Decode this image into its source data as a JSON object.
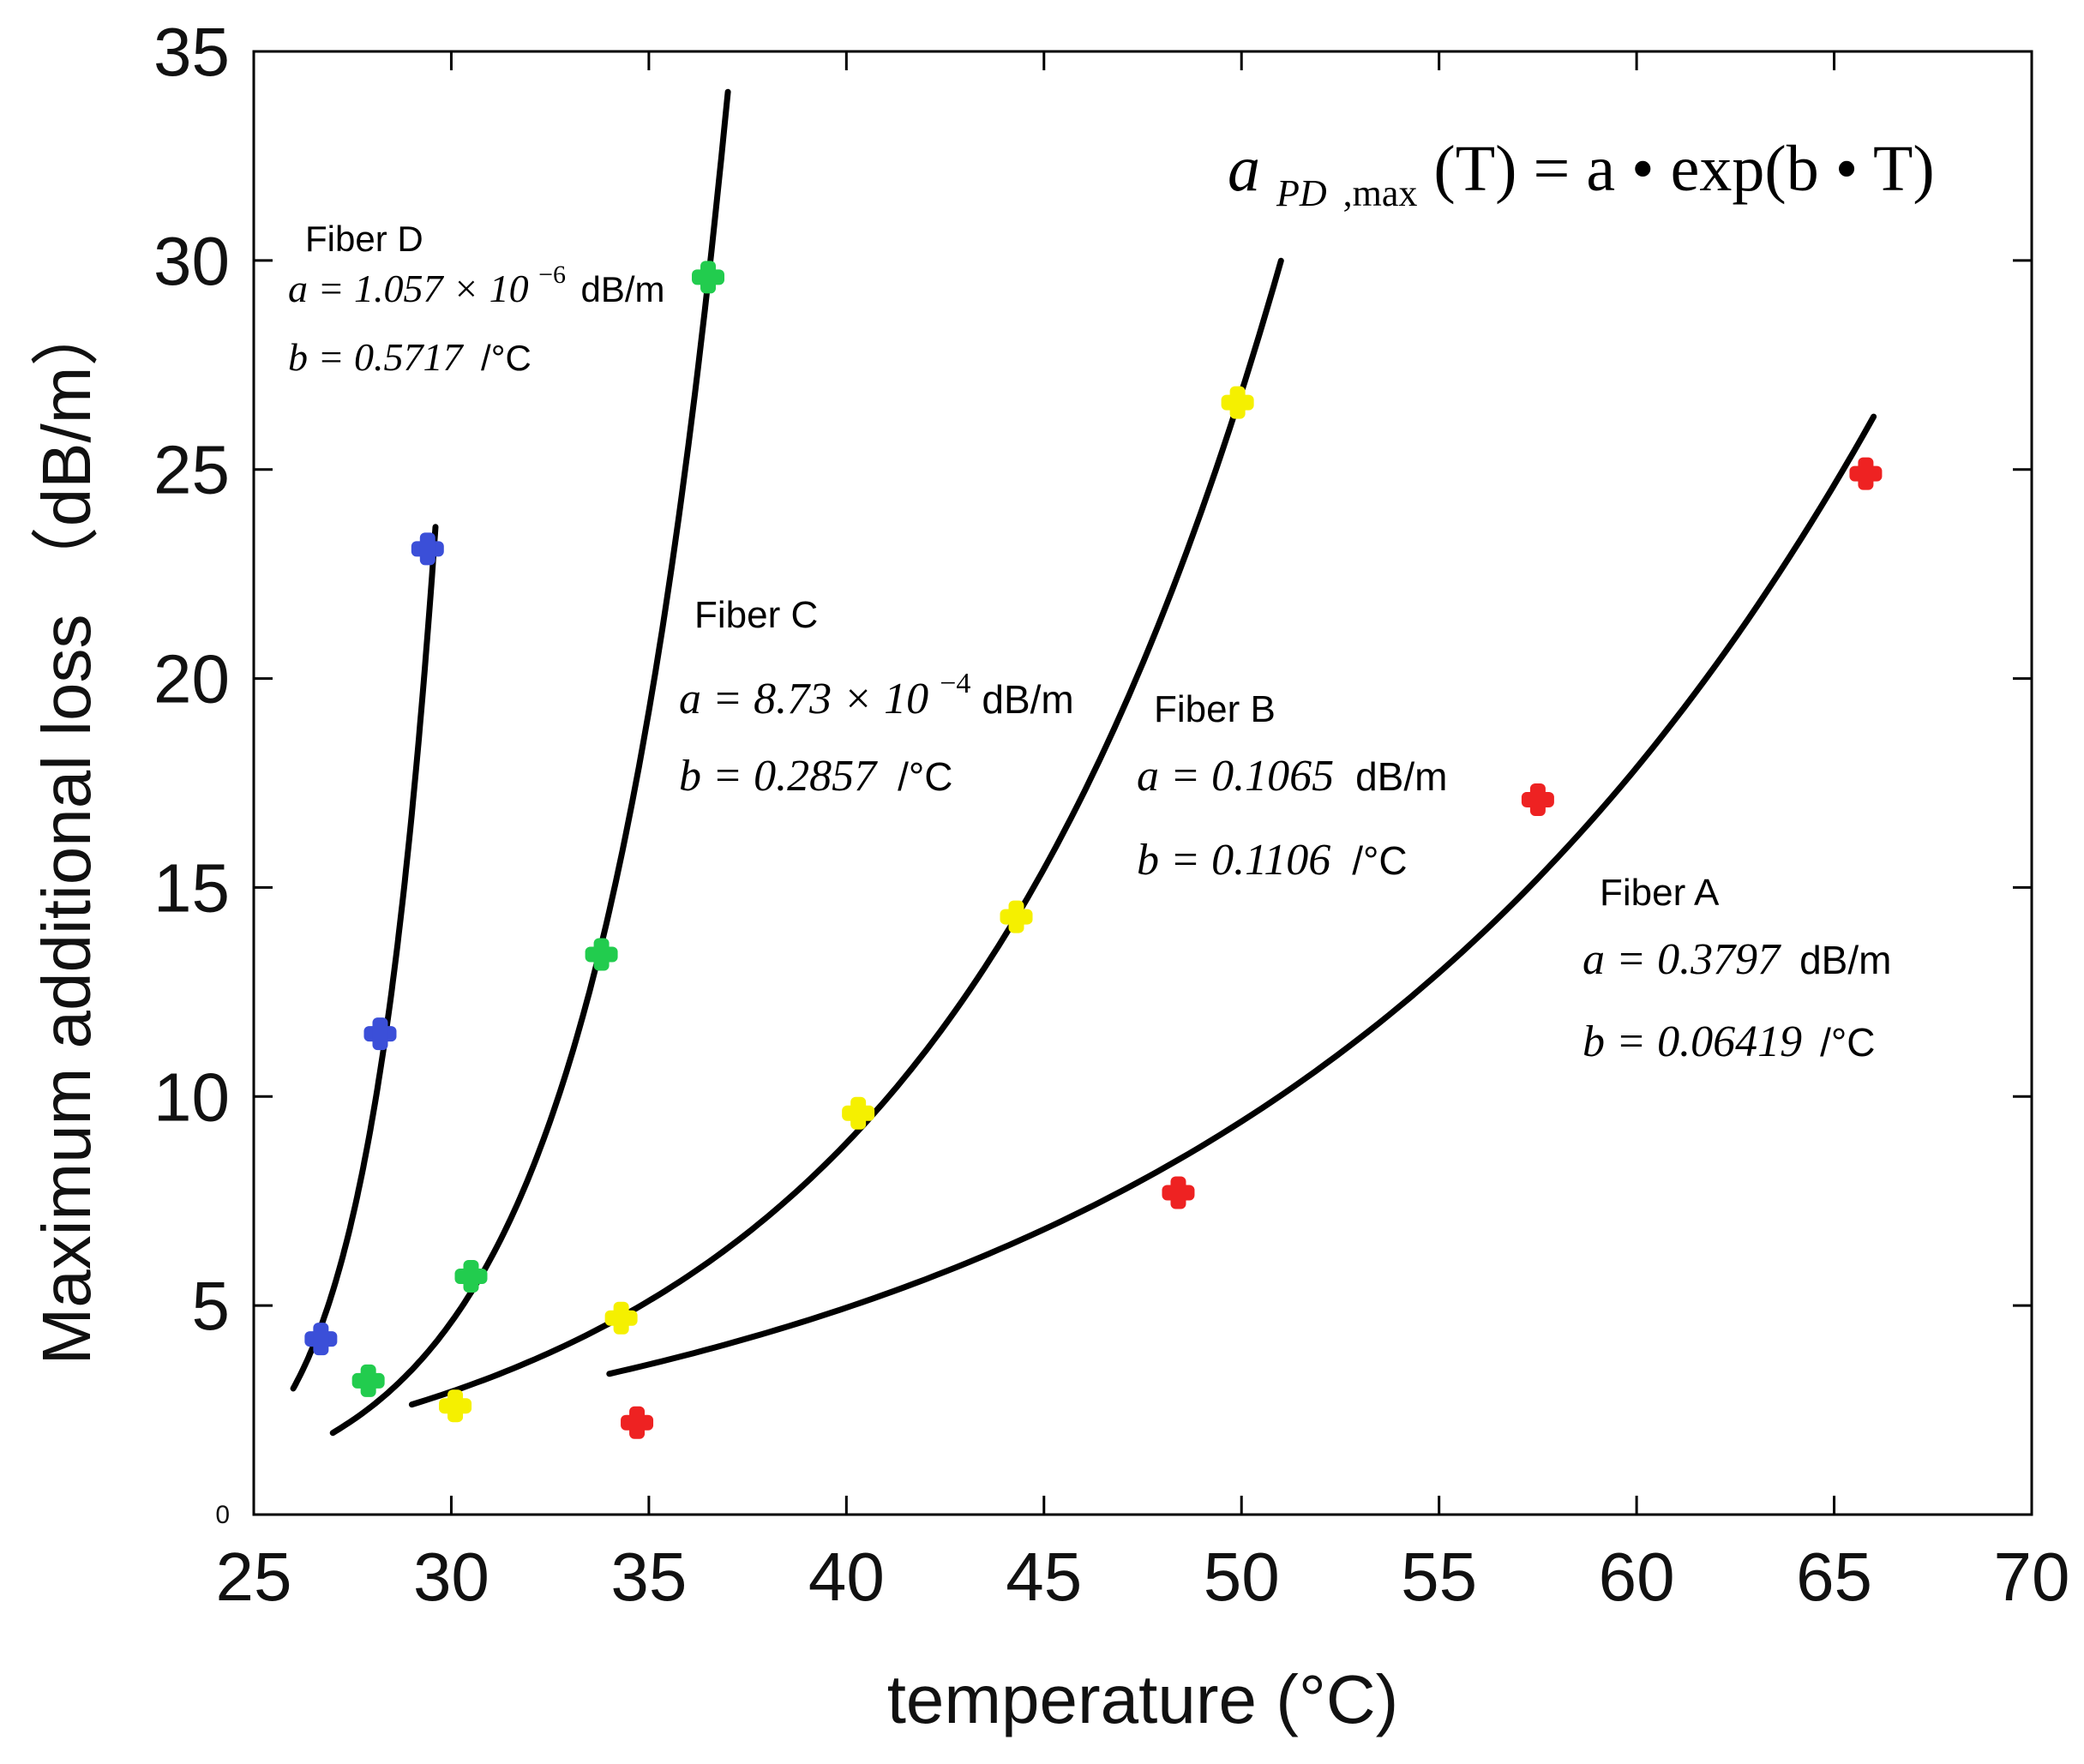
{
  "chart_data": {
    "type": "scatter",
    "title": "",
    "xlabel": "temperature (°C)",
    "ylabel": "Maximum additional loss （dB/m）",
    "xlim": [
      25,
      70
    ],
    "ylim": [
      0,
      35
    ],
    "xticks": [
      25,
      30,
      35,
      40,
      45,
      50,
      55,
      60,
      65,
      70
    ],
    "yticks": [
      5,
      10,
      15,
      20,
      25,
      30,
      35
    ],
    "ytick_labels": [
      "5",
      "10",
      "15",
      "20",
      "25",
      "30",
      "35"
    ],
    "ytick_zero_label": "0",
    "grid": false,
    "formula": {
      "lhs_main": "a",
      "lhs_sub": "PD",
      "lhs_sub2": ",max",
      "rhs": "(T) = a • exp(b • T)"
    },
    "series": [
      {
        "name": "Fiber D",
        "color": "#3b4fd8",
        "points": [
          [
            26.7,
            4.2
          ],
          [
            28.2,
            11.5
          ],
          [
            29.4,
            23.1
          ]
        ],
        "fit": {
          "a": 1.057e-06,
          "b": 0.5717,
          "x_range": [
            26.0,
            29.6
          ]
        },
        "label": "Fiber D",
        "a_text": "a = 1.057 × 10",
        "a_exp": "−6",
        "a_unit": "dB/m",
        "b_text": "b = 0.5717",
        "b_unit": "/°C"
      },
      {
        "name": "Fiber C",
        "color": "#22cc4e",
        "points": [
          [
            27.9,
            3.2
          ],
          [
            30.5,
            5.7
          ],
          [
            33.8,
            13.4
          ],
          [
            36.5,
            29.6
          ]
        ],
        "fit": {
          "a": 0.000873,
          "b": 0.2857,
          "x_range": [
            27.0,
            37.0
          ]
        },
        "label": "Fiber C",
        "a_text": "a = 8.73 × 10",
        "a_exp": "−4",
        "a_unit": "dB/m",
        "b_text": "b = 0.2857",
        "b_unit": "/°C"
      },
      {
        "name": "Fiber B",
        "color": "#f5f000",
        "points": [
          [
            30.1,
            2.6
          ],
          [
            34.3,
            4.7
          ],
          [
            40.3,
            9.6
          ],
          [
            44.3,
            14.3
          ],
          [
            49.9,
            26.6
          ]
        ],
        "fit": {
          "a": 0.1065,
          "b": 0.1106,
          "x_range": [
            29.0,
            51.0
          ]
        },
        "label": "Fiber B",
        "a_text": "a = 0.1065",
        "a_exp": "",
        "a_unit": "dB/m",
        "b_text": "b = 0.1106",
        "b_unit": "/°C"
      },
      {
        "name": "Fiber A",
        "color": "#ee2222",
        "points": [
          [
            34.7,
            2.2
          ],
          [
            48.4,
            7.7
          ],
          [
            57.5,
            17.1
          ],
          [
            65.8,
            24.9
          ]
        ],
        "fit": {
          "a": 0.3797,
          "b": 0.06419,
          "x_range": [
            34.0,
            66.0
          ]
        },
        "label": "Fiber A",
        "a_text": "a = 0.3797",
        "a_exp": "",
        "a_unit": "dB/m",
        "b_text": "b = 0.06419",
        "b_unit": "/°C"
      }
    ]
  }
}
